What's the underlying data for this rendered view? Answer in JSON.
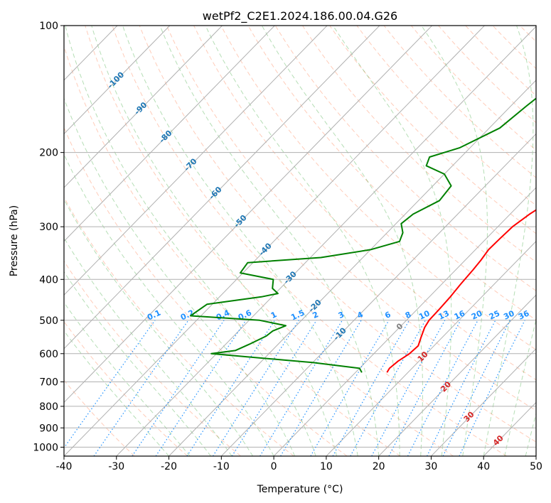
{
  "chart_data": {
    "type": "line",
    "subtype": "skew-t log-p diagram",
    "title": "wetPf2_C2E1.2024.186.00.04.G26",
    "xlabel": "Temperature (°C)",
    "ylabel": "Pressure (hPa)",
    "xlim": [
      -40,
      50
    ],
    "ylim": [
      1050,
      100
    ],
    "y_scale": "log",
    "x_ticks": [
      "-40",
      "-30",
      "-20",
      "-10",
      "0",
      "10",
      "20",
      "30",
      "40",
      "50"
    ],
    "y_ticks": [
      "100",
      "200",
      "300",
      "400",
      "500",
      "600",
      "700",
      "800",
      "900",
      "1000"
    ],
    "grid": true,
    "series": [
      {
        "role": "temperature",
        "color": "#ff0000",
        "points": [
          {
            "p": 665,
            "t": 6.0
          },
          {
            "p": 650,
            "t": 5.7
          },
          {
            "p": 625,
            "t": 6.0
          },
          {
            "p": 600,
            "t": 6.8
          },
          {
            "p": 575,
            "t": 7.0
          },
          {
            "p": 550,
            "t": 6.0
          },
          {
            "p": 520,
            "t": 4.8
          },
          {
            "p": 500,
            "t": 4.3
          },
          {
            "p": 470,
            "t": 4.2
          },
          {
            "p": 440,
            "t": 4.0
          },
          {
            "p": 410,
            "t": 3.6
          },
          {
            "p": 380,
            "t": 3.3
          },
          {
            "p": 360,
            "t": 3.0
          },
          {
            "p": 340,
            "t": 2.5
          },
          {
            "p": 320,
            "t": 2.6
          },
          {
            "p": 300,
            "t": 2.8
          },
          {
            "p": 280,
            "t": 3.7
          },
          {
            "p": 260,
            "t": 5.2
          },
          {
            "p": 240,
            "t": 7.2
          },
          {
            "p": 220,
            "t": 9.5
          },
          {
            "p": 200,
            "t": 10.8
          },
          {
            "p": 180,
            "t": 11.6
          },
          {
            "p": 160,
            "t": 12.8
          },
          {
            "p": 140,
            "t": 16.0
          },
          {
            "p": 125,
            "t": 17.5
          },
          {
            "p": 115,
            "t": 17.3
          },
          {
            "p": 108,
            "t": 18.0
          },
          {
            "p": 100,
            "t": 19.3
          }
        ]
      },
      {
        "role": "dewpoint",
        "color": "#008000",
        "points": [
          {
            "p": 665,
            "t": 1.2
          },
          {
            "p": 650,
            "t": 0.0
          },
          {
            "p": 630,
            "t": -10.0
          },
          {
            "p": 610,
            "t": -24.0
          },
          {
            "p": 600,
            "t": -31.0
          },
          {
            "p": 590,
            "t": -27.0
          },
          {
            "p": 570,
            "t": -25.5
          },
          {
            "p": 545,
            "t": -23.8
          },
          {
            "p": 530,
            "t": -23.5
          },
          {
            "p": 515,
            "t": -22.0
          },
          {
            "p": 500,
            "t": -28.0
          },
          {
            "p": 488,
            "t": -42.0
          },
          {
            "p": 458,
            "t": -41.0
          },
          {
            "p": 440,
            "t": -32.0
          },
          {
            "p": 432,
            "t": -29.5
          },
          {
            "p": 420,
            "t": -31.5
          },
          {
            "p": 400,
            "t": -33.0
          },
          {
            "p": 386,
            "t": -40.5
          },
          {
            "p": 365,
            "t": -41.0
          },
          {
            "p": 355,
            "t": -28.0
          },
          {
            "p": 340,
            "t": -20.0
          },
          {
            "p": 325,
            "t": -16.0
          },
          {
            "p": 310,
            "t": -17.0
          },
          {
            "p": 295,
            "t": -19.0
          },
          {
            "p": 280,
            "t": -18.5
          },
          {
            "p": 260,
            "t": -16.0
          },
          {
            "p": 240,
            "t": -16.5
          },
          {
            "p": 225,
            "t": -20.0
          },
          {
            "p": 215,
            "t": -25.0
          },
          {
            "p": 205,
            "t": -26.0
          },
          {
            "p": 195,
            "t": -22.0
          },
          {
            "p": 175,
            "t": -18.0
          },
          {
            "p": 155,
            "t": -17.0
          },
          {
            "p": 140,
            "t": -16.0
          },
          {
            "p": 130,
            "t": -14.0
          },
          {
            "p": 120,
            "t": -10.0
          },
          {
            "p": 110,
            "t": -7.0
          },
          {
            "p": 100,
            "t": -6.0
          }
        ]
      }
    ],
    "isotherm_labels": [
      "-100",
      "-90",
      "-80",
      "-70",
      "-60",
      "-50",
      "-40",
      "-30",
      "-20",
      "-10",
      "0",
      "10",
      "20",
      "30",
      "40"
    ],
    "mixing_ratio_labels": [
      "0.1",
      "0.2",
      "0.4",
      "0.6",
      "1",
      "1.5",
      "2",
      "3",
      "4",
      "6",
      "8",
      "10",
      "13",
      "16",
      "20",
      "25",
      "30",
      "36"
    ],
    "colors": {
      "isotherm_cold": "#1f77b4",
      "isotherm_warm": "#d62728",
      "isotherm_zero": "#7f7f7f",
      "mixing_ratio": "#1e90ff",
      "dry_adiabat": "#ff7f50",
      "moist_adiabat": "#2ca02c",
      "grid": "#b0b0b0"
    }
  }
}
